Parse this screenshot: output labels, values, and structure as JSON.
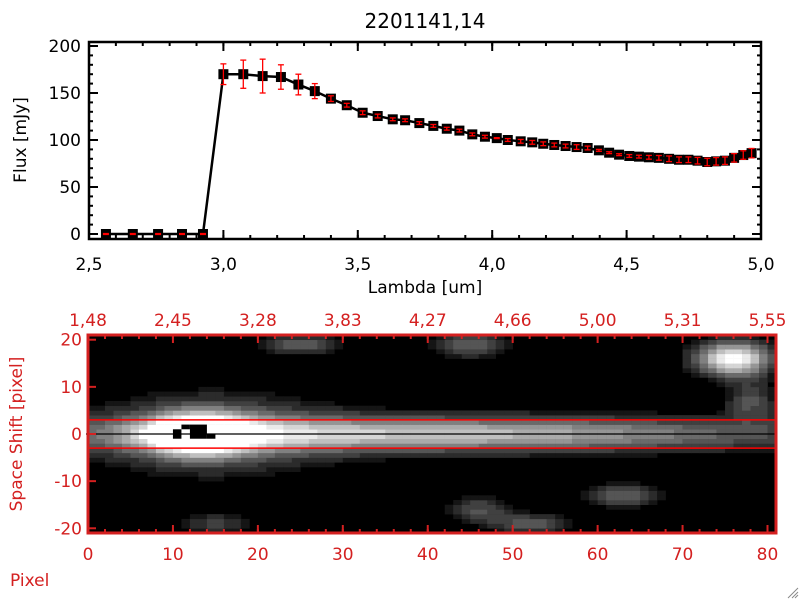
{
  "chart_data": [
    {
      "type": "line",
      "title": "2201141,14",
      "xlabel": "Lambda [um]",
      "ylabel": "Flux [mJy]",
      "xlim": [
        2.5,
        5.0
      ],
      "ylim": [
        0,
        200
      ],
      "xticks": [
        "2,5",
        "3,0",
        "3,5",
        "4,0",
        "4,5",
        "5,0"
      ],
      "xtick_values": [
        2.5,
        3.0,
        3.5,
        4.0,
        4.5,
        5.0
      ],
      "yticks": [
        "0",
        "50",
        "100",
        "150",
        "200"
      ],
      "ytick_values": [
        0,
        50,
        100,
        150,
        200
      ],
      "colors": {
        "line": "#000000",
        "marker": "#000000",
        "errorbar": "#ff0000"
      },
      "x": [
        2.563,
        2.663,
        2.757,
        2.846,
        2.924,
        3.0,
        3.074,
        3.146,
        3.214,
        3.279,
        3.34,
        3.4,
        3.459,
        3.518,
        3.574,
        3.63,
        3.676,
        3.729,
        3.781,
        3.831,
        3.878,
        3.926,
        3.973,
        4.017,
        4.058,
        4.106,
        4.149,
        4.19,
        4.231,
        4.273,
        4.314,
        4.355,
        4.397,
        4.435,
        4.472,
        4.51,
        4.546,
        4.583,
        4.62,
        4.658,
        4.695,
        4.73,
        4.764,
        4.8,
        4.833,
        4.866,
        4.9,
        4.934,
        4.965
      ],
      "y": [
        0,
        0,
        0,
        0,
        0,
        170,
        170,
        168,
        167,
        159,
        152,
        144,
        137,
        129,
        125.5,
        122,
        121,
        118,
        115,
        112,
        110,
        106,
        103.5,
        102,
        100,
        98.6,
        97.5,
        96,
        94.7,
        93.6,
        92.5,
        91.5,
        89,
        86.5,
        84.4,
        83,
        82.3,
        81.6,
        81,
        80,
        79,
        79,
        78,
        76.6,
        77.3,
        78,
        81,
        84,
        86
      ],
      "yerr": [
        0.5,
        0.5,
        0.5,
        0.5,
        0.5,
        11,
        15,
        18,
        13,
        11,
        8,
        3,
        2,
        2,
        2,
        1.5,
        1.5,
        1.5,
        1.5,
        1.5,
        1.5,
        1.5,
        1.5,
        0.5,
        1.5,
        2,
        2,
        2,
        2,
        2,
        2.5,
        2,
        1,
        1,
        1,
        1.5,
        1.5,
        2,
        2.5,
        3,
        3,
        3,
        3.5,
        4,
        4,
        4,
        4.5,
        4.5,
        5
      ]
    },
    {
      "type": "heatmap",
      "xlabel": "Pixel",
      "ylabel": "Space Shift [pixel]",
      "xlim": [
        0,
        81
      ],
      "ylim": [
        -21,
        21
      ],
      "xticks": [
        "0",
        "10",
        "20",
        "30",
        "40",
        "50",
        "60",
        "70",
        "80"
      ],
      "xtick_values": [
        0,
        10,
        20,
        30,
        40,
        50,
        60,
        70,
        80
      ],
      "top_xticks": [
        "1,48",
        "2,45",
        "3,28",
        "3,83",
        "4,27",
        "4,66",
        "5,00",
        "5,31",
        "5,55"
      ],
      "yticks": [
        "20",
        "10",
        "0",
        "-10",
        "-20"
      ],
      "ytick_values": [
        20,
        10,
        0,
        -10,
        -20
      ],
      "aperture_lines": [
        3,
        -3
      ],
      "center_line": 0,
      "colors": {
        "axis": "#d42020",
        "aperture": "#ff0000",
        "center": "#000000"
      },
      "sources": [
        {
          "x": 13,
          "y": 0,
          "amp": 1.0,
          "sx": 4,
          "sy": 3
        },
        {
          "x": 40,
          "y": 0,
          "amp": 0.7,
          "sx": 30,
          "sy": 2.6
        },
        {
          "x": 15,
          "y": 0,
          "amp": 0.35,
          "sx": 10,
          "sy": 6
        },
        {
          "x": 76,
          "y": 16,
          "amp": 0.95,
          "sx": 3,
          "sy": 2.5
        },
        {
          "x": 25,
          "y": 19,
          "amp": 0.35,
          "sx": 3,
          "sy": 1.5
        },
        {
          "x": 45,
          "y": 19,
          "amp": 0.35,
          "sx": 3,
          "sy": 2
        },
        {
          "x": 46,
          "y": -16,
          "amp": 0.3,
          "sx": 2.5,
          "sy": 2
        },
        {
          "x": 52,
          "y": -19,
          "amp": 0.35,
          "sx": 3,
          "sy": 1.5
        },
        {
          "x": 63,
          "y": -13,
          "amp": 0.35,
          "sx": 3,
          "sy": 1.8
        },
        {
          "x": 15,
          "y": -19,
          "amp": 0.25,
          "sx": 3,
          "sy": 1.5
        },
        {
          "x": 78,
          "y": 7,
          "amp": 0.3,
          "sx": 2,
          "sy": 3
        }
      ]
    }
  ]
}
